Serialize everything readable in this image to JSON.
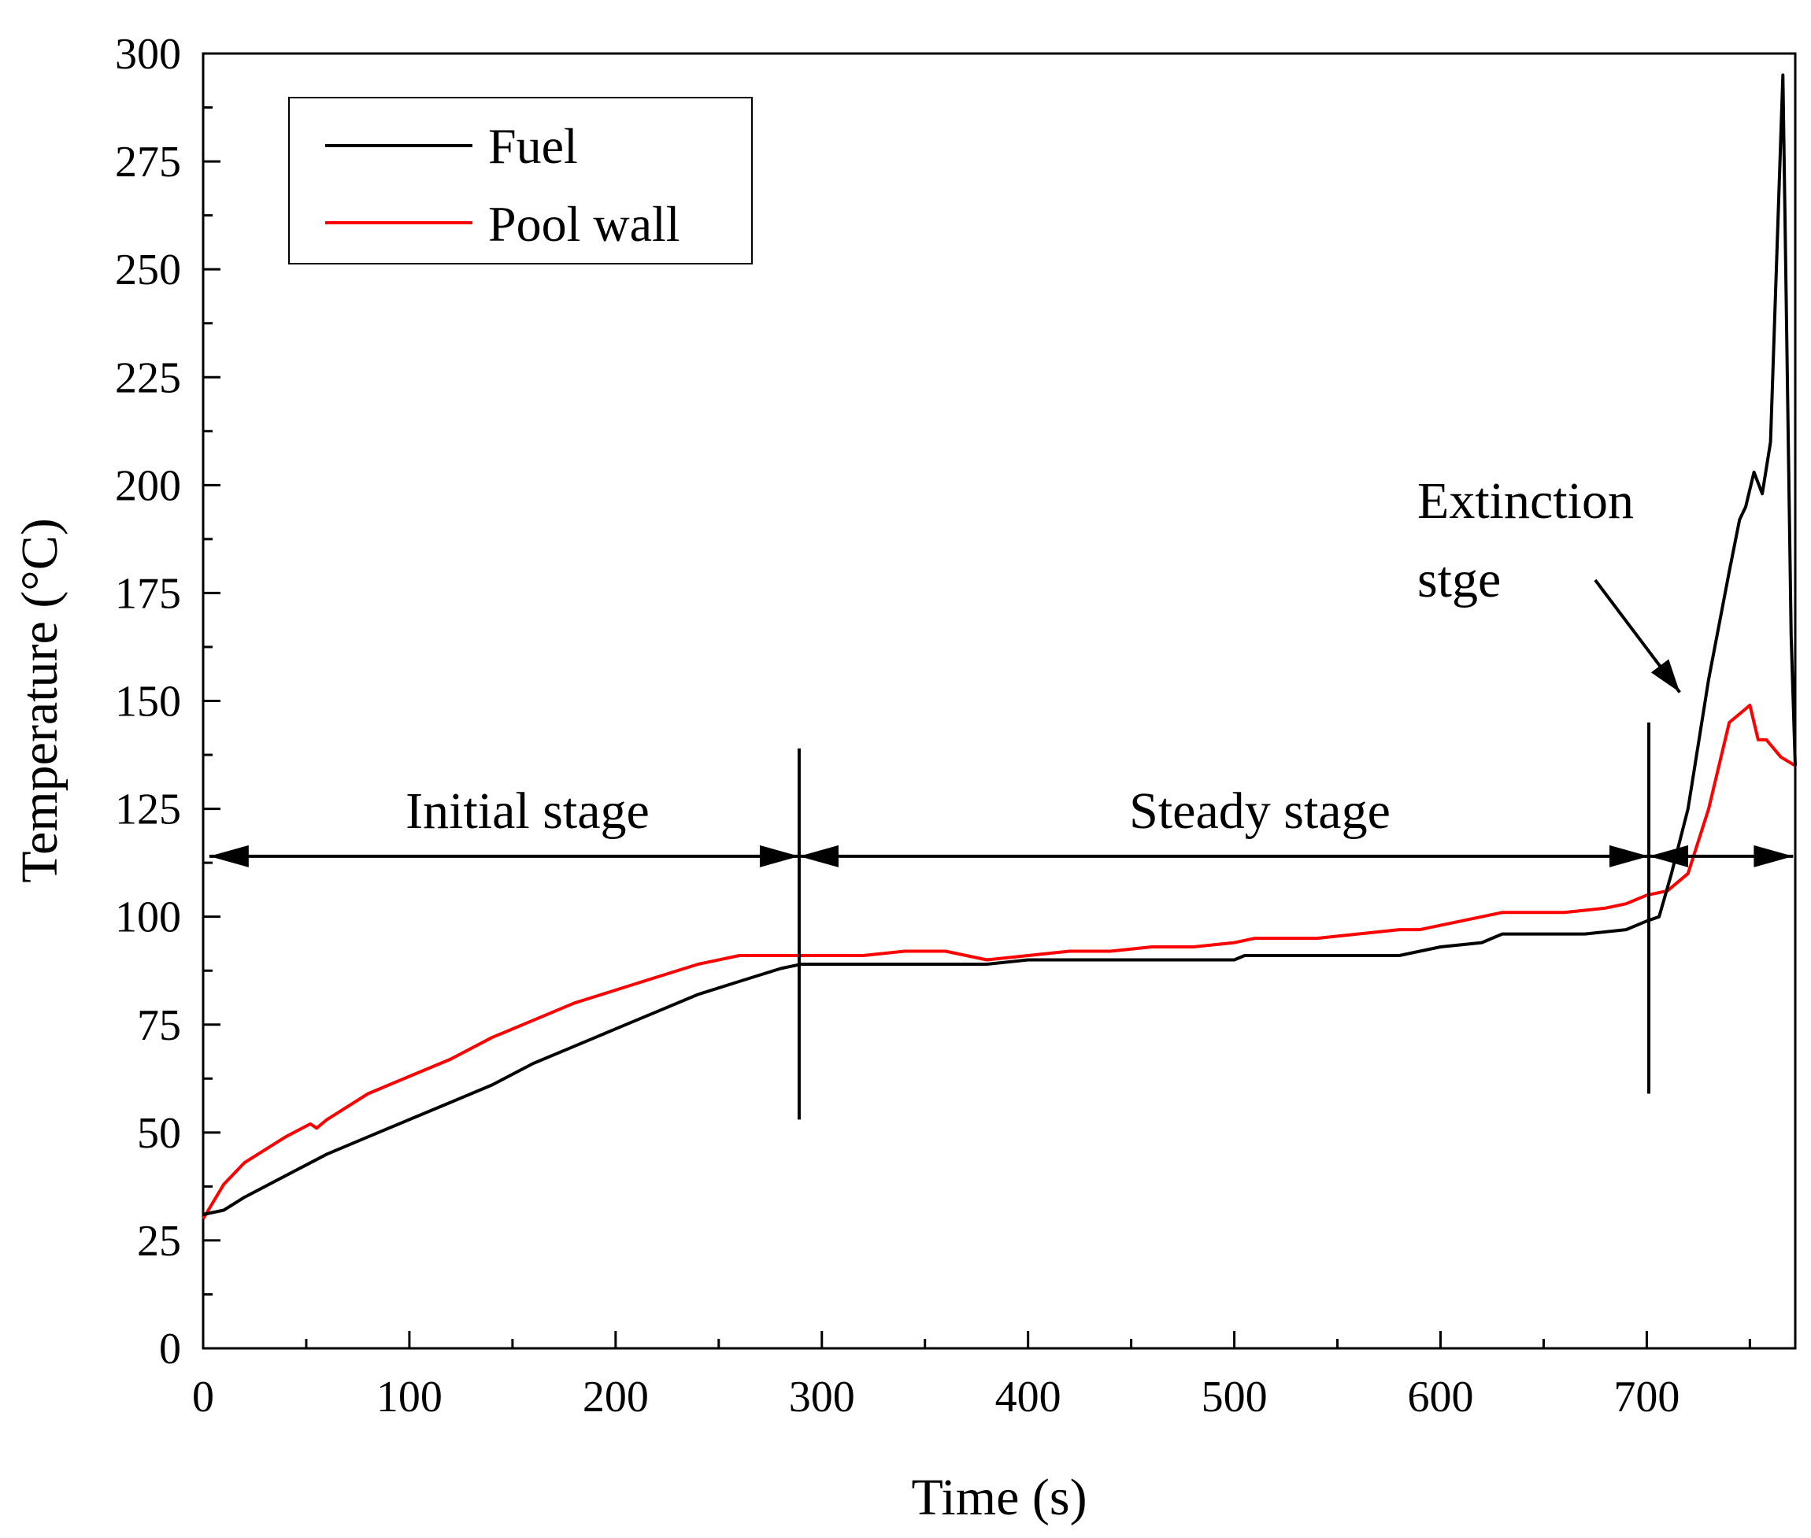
{
  "chart_data": {
    "type": "line",
    "title": "",
    "xlabel": "Time (s)",
    "ylabel": "Temperature (°C)",
    "xlim": [
      0,
      772
    ],
    "ylim": [
      0,
      300
    ],
    "x_ticks": [
      0,
      100,
      200,
      300,
      400,
      500,
      600,
      700
    ],
    "x_tick_labels": [
      "0",
      "100",
      "200",
      "300",
      "400",
      "500",
      "600",
      "700"
    ],
    "y_ticks": [
      0,
      25,
      50,
      75,
      100,
      125,
      150,
      175,
      200,
      225,
      250,
      275,
      300
    ],
    "y_tick_labels": [
      "0",
      "25",
      "50",
      "75",
      "100",
      "125",
      "150",
      "175",
      "200",
      "225",
      "250",
      "275",
      "300"
    ],
    "grid": false,
    "legend_position": "top-left",
    "series": [
      {
        "name": "Fuel",
        "color": "#000000",
        "x": [
          0,
          10,
          20,
          40,
          60,
          80,
          100,
          120,
          140,
          160,
          180,
          200,
          220,
          240,
          260,
          280,
          290,
          300,
          320,
          340,
          360,
          380,
          400,
          420,
          440,
          460,
          480,
          500,
          505,
          520,
          540,
          560,
          580,
          590,
          600,
          620,
          630,
          650,
          670,
          690,
          700,
          706,
          712,
          720,
          730,
          740,
          745,
          748,
          752,
          756,
          760,
          766,
          770,
          772
        ],
        "y": [
          31,
          32,
          35,
          40,
          45,
          49,
          53,
          57,
          61,
          66,
          70,
          74,
          78,
          82,
          85,
          88,
          89,
          89,
          89,
          89,
          89,
          89,
          90,
          90,
          90,
          90,
          90,
          90,
          91,
          91,
          91,
          91,
          91,
          92,
          93,
          94,
          96,
          96,
          96,
          97,
          99,
          100,
          110,
          125,
          155,
          180,
          192,
          195,
          203,
          198,
          210,
          295,
          165,
          135
        ]
      },
      {
        "name": "Pool wall",
        "color": "#ff0000",
        "x": [
          0,
          10,
          20,
          40,
          52,
          55,
          60,
          80,
          100,
          120,
          140,
          160,
          180,
          200,
          220,
          240,
          260,
          280,
          290,
          300,
          320,
          340,
          360,
          380,
          400,
          420,
          440,
          460,
          480,
          500,
          510,
          520,
          540,
          560,
          580,
          590,
          600,
          620,
          630,
          640,
          660,
          680,
          690,
          700,
          710,
          720,
          730,
          740,
          745,
          750,
          754,
          758,
          765,
          772
        ],
        "y": [
          30,
          38,
          43,
          49,
          52,
          51,
          53,
          59,
          63,
          67,
          72,
          76,
          80,
          83,
          86,
          89,
          91,
          91,
          91,
          91,
          91,
          92,
          92,
          90,
          91,
          92,
          92,
          93,
          93,
          94,
          95,
          95,
          95,
          96,
          97,
          97,
          98,
          100,
          101,
          101,
          101,
          102,
          103,
          105,
          106,
          110,
          125,
          145,
          147,
          149,
          141,
          141,
          137,
          135
        ]
      }
    ],
    "annotations": {
      "initial_stage": "Initial stage",
      "steady_stage": "Steady stage",
      "extinction_line1": "Extinction",
      "extinction_line2": "stge"
    },
    "stage_boundaries": [
      289,
      701
    ],
    "stage_arrow_y": 114,
    "extinction_arrow": {
      "from": [
        675,
        178
      ],
      "to": [
        716,
        152
      ]
    }
  }
}
